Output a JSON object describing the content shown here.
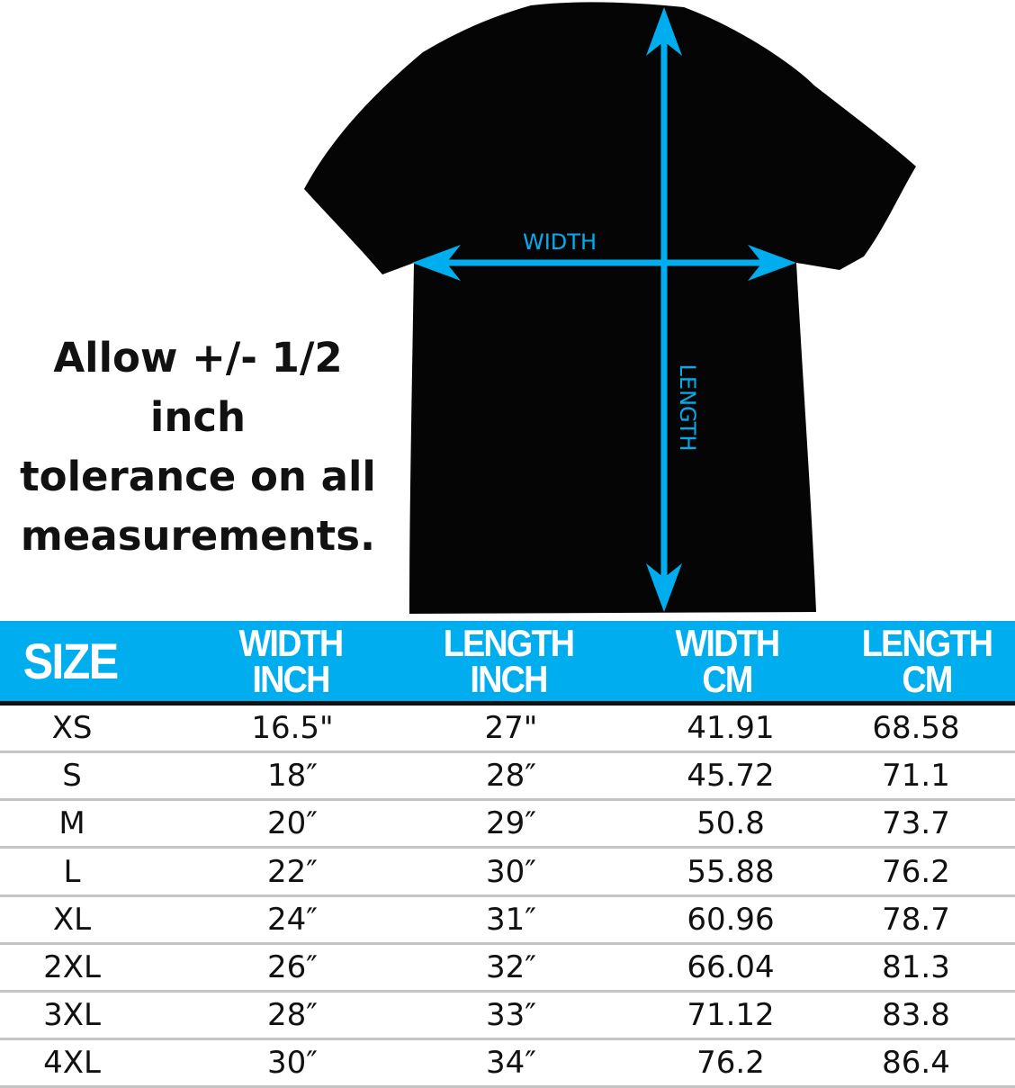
{
  "diagram": {
    "width_label": "WIDTH",
    "length_label": "LENGTH",
    "shirt_color": "#000000",
    "arrow_color": "#00aeef"
  },
  "note": {
    "lines": [
      "Allow +/- 1/2 inch",
      "tolerance on all",
      "measurements."
    ]
  },
  "table": {
    "header_color": "#00aeef",
    "headers": [
      {
        "line1": "SIZE",
        "line2": ""
      },
      {
        "line1": "WIDTH",
        "line2": "INCH"
      },
      {
        "line1": "LENGTH",
        "line2": "INCH"
      },
      {
        "line1": "WIDTH",
        "line2": "CM"
      },
      {
        "line1": "LENGTH",
        "line2": "CM"
      }
    ],
    "rows": [
      [
        "XS",
        "16.5\"",
        "27\"",
        "41.91",
        "68.58"
      ],
      [
        "S",
        "18″",
        "28″",
        "45.72",
        "71.1"
      ],
      [
        "M",
        "20″",
        "29″",
        "50.8",
        "73.7"
      ],
      [
        "L",
        "22″",
        "30″",
        "55.88",
        "76.2"
      ],
      [
        "XL",
        "24″",
        "31″",
        "60.96",
        "78.7"
      ],
      [
        "2XL",
        "26″",
        "32″",
        "66.04",
        "81.3"
      ],
      [
        "3XL",
        "28″",
        "33″",
        "71.12",
        "83.8"
      ],
      [
        "4XL",
        "30″",
        "34″",
        "76.2",
        "86.4"
      ]
    ]
  }
}
